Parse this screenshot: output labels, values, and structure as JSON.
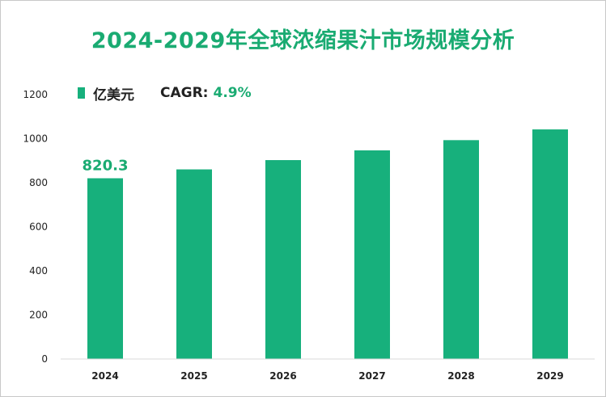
{
  "chart_data": {
    "type": "bar",
    "title": "2024-2029年全球浓缩果汁市场规模分析",
    "categories": [
      "2024",
      "2025",
      "2026",
      "2027",
      "2028",
      "2029"
    ],
    "series": [
      {
        "name": "亿美元",
        "values": [
          820.3,
          860.5,
          902.7,
          946.9,
          993.3,
          1042.0
        ],
        "color": "#17b07c"
      }
    ],
    "data_labels": [
      "820.3",
      "",
      "",
      "",
      "",
      ""
    ],
    "yticks": [
      "0",
      "200",
      "400",
      "600",
      "800",
      "1000",
      "1200"
    ],
    "ylim": [
      0,
      1200
    ],
    "grid": false,
    "legend_position": "top-left",
    "cagr": {
      "label": "CAGR:",
      "value": "4.9%"
    }
  }
}
